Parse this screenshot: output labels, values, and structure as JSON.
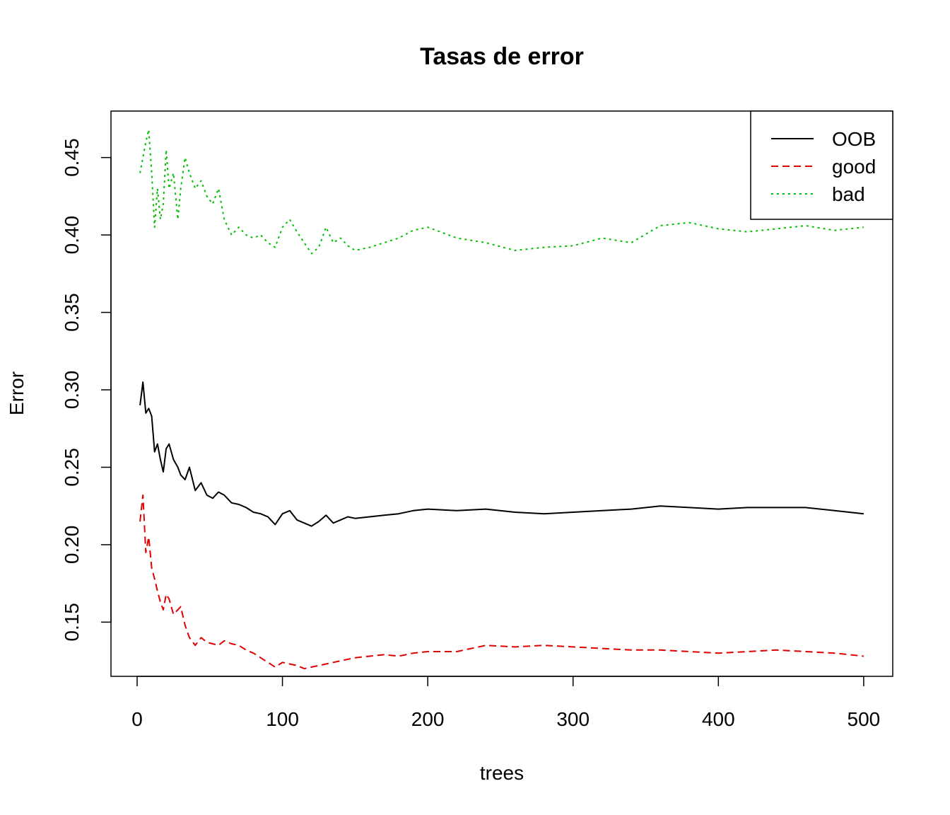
{
  "chart_data": {
    "type": "line",
    "title": "Tasas de error",
    "xlabel": "trees",
    "ylabel": "Error",
    "xlim": [
      -18,
      520
    ],
    "ylim": [
      0.115,
      0.48
    ],
    "x_ticks": [
      0,
      100,
      200,
      300,
      400,
      500
    ],
    "y_ticks": [
      0.15,
      0.2,
      0.25,
      0.3,
      0.35,
      0.4,
      0.45
    ],
    "x_tick_labels": [
      "0",
      "100",
      "200",
      "300",
      "400",
      "500"
    ],
    "y_tick_labels": [
      "0.15",
      "0.20",
      "0.25",
      "0.30",
      "0.35",
      "0.40",
      "0.45"
    ],
    "grid": false,
    "legend_position": "top-right",
    "series": [
      {
        "name": "OOB",
        "color": "#000000",
        "dash": "solid",
        "x": [
          2,
          4,
          6,
          8,
          10,
          12,
          14,
          16,
          18,
          20,
          22,
          25,
          28,
          30,
          33,
          36,
          40,
          44,
          48,
          52,
          56,
          60,
          65,
          70,
          75,
          80,
          85,
          90,
          95,
          100,
          105,
          110,
          115,
          120,
          125,
          130,
          135,
          140,
          145,
          150,
          160,
          170,
          180,
          190,
          200,
          220,
          240,
          260,
          280,
          300,
          320,
          340,
          360,
          380,
          400,
          420,
          440,
          460,
          480,
          500
        ],
        "y": [
          0.29,
          0.305,
          0.285,
          0.288,
          0.283,
          0.26,
          0.265,
          0.255,
          0.247,
          0.262,
          0.265,
          0.255,
          0.25,
          0.245,
          0.242,
          0.25,
          0.235,
          0.24,
          0.232,
          0.23,
          0.234,
          0.232,
          0.227,
          0.226,
          0.224,
          0.221,
          0.22,
          0.218,
          0.213,
          0.22,
          0.222,
          0.216,
          0.214,
          0.212,
          0.215,
          0.219,
          0.214,
          0.216,
          0.218,
          0.217,
          0.218,
          0.219,
          0.22,
          0.222,
          0.223,
          0.222,
          0.223,
          0.221,
          0.22,
          0.221,
          0.222,
          0.223,
          0.225,
          0.224,
          0.223,
          0.224,
          0.224,
          0.224,
          0.222,
          0.22
        ]
      },
      {
        "name": "good",
        "color": "#df0000",
        "dash": "10,6",
        "x": [
          2,
          4,
          6,
          8,
          10,
          12,
          14,
          16,
          18,
          20,
          22,
          25,
          28,
          30,
          33,
          36,
          40,
          44,
          48,
          52,
          56,
          60,
          65,
          70,
          75,
          80,
          85,
          90,
          95,
          100,
          105,
          110,
          115,
          120,
          125,
          130,
          135,
          140,
          145,
          150,
          160,
          170,
          180,
          190,
          200,
          220,
          240,
          260,
          280,
          300,
          320,
          340,
          360,
          380,
          400,
          420,
          440,
          460,
          480,
          500
        ],
        "y": [
          0.215,
          0.232,
          0.195,
          0.205,
          0.185,
          0.178,
          0.17,
          0.163,
          0.158,
          0.168,
          0.165,
          0.155,
          0.158,
          0.16,
          0.148,
          0.14,
          0.135,
          0.14,
          0.137,
          0.136,
          0.135,
          0.138,
          0.136,
          0.135,
          0.132,
          0.13,
          0.127,
          0.124,
          0.121,
          0.124,
          0.123,
          0.122,
          0.12,
          0.121,
          0.122,
          0.123,
          0.124,
          0.125,
          0.126,
          0.127,
          0.128,
          0.129,
          0.128,
          0.13,
          0.131,
          0.131,
          0.135,
          0.134,
          0.135,
          0.134,
          0.133,
          0.132,
          0.132,
          0.131,
          0.13,
          0.131,
          0.132,
          0.131,
          0.13,
          0.128
        ]
      },
      {
        "name": "bad",
        "color": "#00c000",
        "dash": "3,5",
        "x": [
          2,
          4,
          6,
          8,
          10,
          12,
          14,
          16,
          18,
          20,
          22,
          25,
          28,
          30,
          33,
          36,
          40,
          44,
          48,
          52,
          56,
          60,
          65,
          70,
          75,
          80,
          85,
          90,
          95,
          100,
          105,
          110,
          115,
          120,
          125,
          130,
          135,
          140,
          145,
          150,
          160,
          170,
          180,
          190,
          200,
          220,
          240,
          260,
          280,
          300,
          320,
          340,
          360,
          380,
          400,
          420,
          440,
          460,
          480,
          500
        ],
        "y": [
          0.44,
          0.45,
          0.46,
          0.468,
          0.44,
          0.405,
          0.43,
          0.41,
          0.42,
          0.455,
          0.43,
          0.44,
          0.41,
          0.43,
          0.45,
          0.44,
          0.43,
          0.435,
          0.425,
          0.42,
          0.43,
          0.41,
          0.4,
          0.405,
          0.4,
          0.398,
          0.4,
          0.395,
          0.392,
          0.405,
          0.41,
          0.402,
          0.395,
          0.388,
          0.392,
          0.405,
          0.395,
          0.398,
          0.393,
          0.39,
          0.392,
          0.395,
          0.398,
          0.403,
          0.405,
          0.398,
          0.395,
          0.39,
          0.392,
          0.393,
          0.398,
          0.395,
          0.406,
          0.408,
          0.404,
          0.402,
          0.404,
          0.406,
          0.403,
          0.405
        ]
      }
    ]
  }
}
